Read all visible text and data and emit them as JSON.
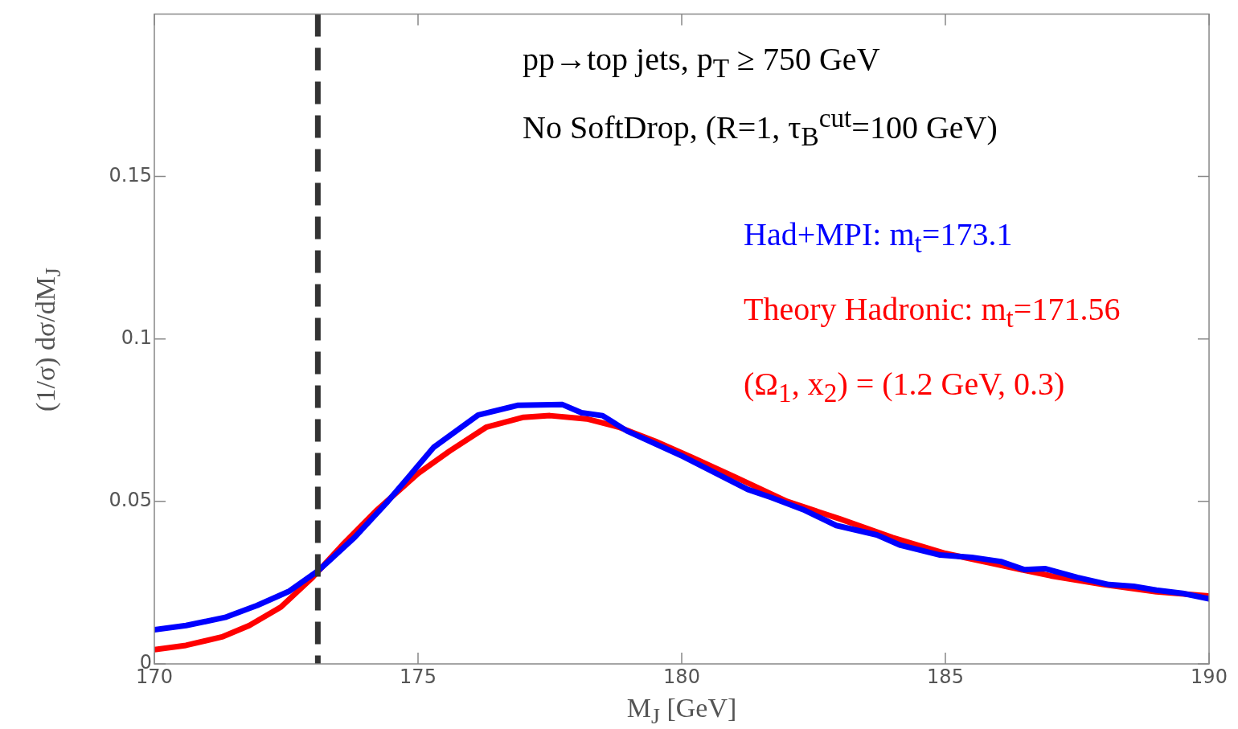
{
  "chart_data": {
    "type": "line",
    "xlabel": "M$_{J}$ [GeV]",
    "ylabel": "(1/σ) dσ/dM$_{J}$",
    "annotations": [
      "pp→top jets, p$_{T}$ ≥ 750 GeV",
      "No SoftDrop, (R=1, τ$_{B}$$^{cut}$=100 GeV)",
      "(Ω$_{1}$, x$_{2}$) = (1.2 GeV, 0.3)"
    ],
    "xlim": [
      170,
      190
    ],
    "xticks": [
      170,
      175,
      180,
      185,
      190
    ],
    "ylim": [
      0,
      0.2
    ],
    "yticks": [
      0,
      0.05,
      0.1,
      0.15
    ],
    "legend": "top right",
    "marker": "none",
    "line_style": "solid",
    "grid": false,
    "ref_lines": [
      {
        "axis": "x",
        "value": 173.1,
        "color": "#333333",
        "line_style": "dashed"
      }
    ],
    "series": [
      {
        "name": "Had+MPI: m$_{t}$=173.1",
        "color": "#0000ff",
        "x": [
          170,
          170.6,
          171.34,
          171.95,
          172.56,
          173.1,
          173.3,
          173.8,
          174.4,
          175.3,
          176.14,
          176.9,
          177.74,
          178.1,
          178.5,
          178.96,
          180.03,
          181.25,
          181.7,
          182.3,
          182.93,
          183.7,
          184.15,
          184.9,
          185.5,
          186.05,
          186.5,
          186.9,
          187.5,
          188.1,
          188.57,
          189,
          189.5,
          190
        ],
        "values": [
          0.0105,
          0.0118,
          0.0143,
          0.018,
          0.0224,
          0.0286,
          0.0315,
          0.039,
          0.0495,
          0.0667,
          0.0766,
          0.0796,
          0.0798,
          0.0773,
          0.0764,
          0.0717,
          0.0638,
          0.0537,
          0.0512,
          0.0475,
          0.0426,
          0.0397,
          0.0365,
          0.0335,
          0.0328,
          0.0315,
          0.029,
          0.0293,
          0.0266,
          0.0244,
          0.0239,
          0.0227,
          0.0217,
          0.02
        ]
      },
      {
        "name": "Theory Hadronic: m$_{t}$=171.56",
        "color": "#ff0000",
        "x": [
          170,
          170.6,
          171.3,
          171.8,
          172.4,
          173,
          173.6,
          174.2,
          175,
          175.6,
          176.3,
          177,
          177.5,
          178.2,
          178.8,
          179.5,
          180.2,
          181,
          182,
          183,
          184,
          185,
          186,
          187,
          188,
          189,
          190
        ],
        "values": [
          0.0044,
          0.0057,
          0.0084,
          0.0118,
          0.0175,
          0.0266,
          0.0372,
          0.047,
          0.0586,
          0.0655,
          0.0729,
          0.0759,
          0.0764,
          0.0754,
          0.0729,
          0.0685,
          0.0635,
          0.0576,
          0.05,
          0.0446,
          0.0389,
          0.034,
          0.0305,
          0.0271,
          0.0244,
          0.0222,
          0.0209
        ]
      }
    ]
  }
}
